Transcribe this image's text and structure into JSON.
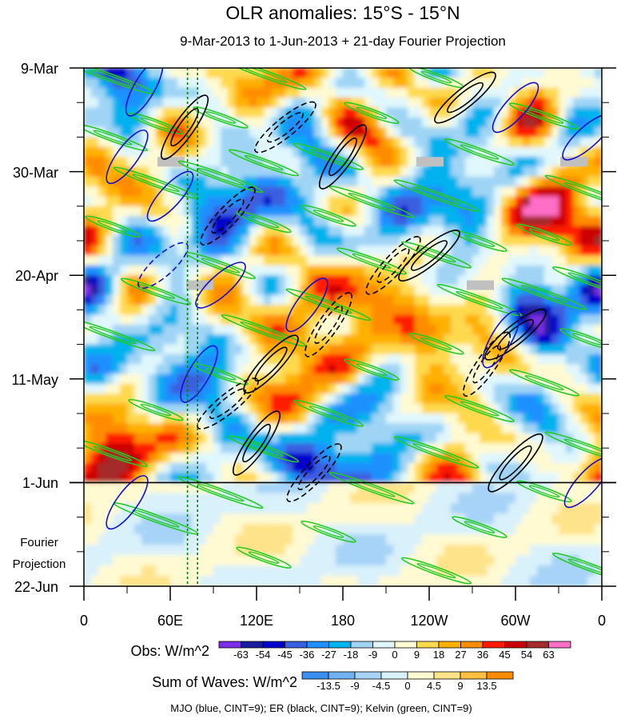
{
  "chart_data": {
    "type": "heatmap",
    "title": "OLR anomalies: 15°S - 15°N",
    "subtitle": "9-Mar-2013 to 1-Jun-2013 + 21-day Fourier Projection",
    "y_tick_labels": [
      "9-Mar",
      "30-Mar",
      "20-Apr",
      "11-May",
      "1-Jun",
      "22-Jun"
    ],
    "y_ticks_days": [
      0,
      21,
      42,
      63,
      84,
      105
    ],
    "y_range_days": [
      0,
      105
    ],
    "x_tick_labels": [
      "0",
      "60E",
      "120E",
      "180",
      "120W",
      "60W",
      "0"
    ],
    "x_ticks_lon": [
      0,
      60,
      120,
      180,
      240,
      300,
      360
    ],
    "x_range_lon": [
      0,
      360
    ],
    "projection_label": [
      "Fourier",
      "Projection"
    ],
    "observation_end_day": 84,
    "reference_lines_lon": [
      72,
      79
    ],
    "obs_colorbar": {
      "label": "Obs: W/m^2",
      "levels": [
        -63,
        -54,
        -45,
        -36,
        -27,
        -18,
        -9,
        0,
        9,
        18,
        27,
        36,
        45,
        54,
        63
      ],
      "level_labels": [
        "-63",
        "-54",
        "-45",
        "-36",
        "-27",
        "-18",
        "-9",
        "0",
        "9",
        "18",
        "27",
        "36",
        "45",
        "54",
        "63"
      ],
      "colors": [
        "#7b2ee6",
        "#1a1a9e",
        "#0000cd",
        "#3a5fe0",
        "#1e90ff",
        "#00b2ee",
        "#9fd4f5",
        "#e0f7fd",
        "#fffad2",
        "#ffd94d",
        "#ffb000",
        "#ff8c00",
        "#ff1a00",
        "#cc0000",
        "#a52a2a",
        "#ff6ec7"
      ]
    },
    "waves_colorbar": {
      "label": "Sum of Waves: W/m^2",
      "levels": [
        -13.5,
        -9,
        -4.5,
        0,
        4.5,
        9,
        13.5
      ],
      "level_labels": [
        "-13.5",
        "-9",
        "-4.5",
        "0",
        "4.5",
        "9",
        "13.5"
      ],
      "colors": [
        "#3a8ef0",
        "#6fb1f3",
        "#a6d3f7",
        "#d9f1fb",
        "#fffad2",
        "#ffe38a",
        "#ffbf40",
        "#ff8c00"
      ]
    },
    "contour_legend": "MJO (blue, CINT=9); ER (black, CINT=9); Kelvin (green, CINT=9)",
    "contour_colors": {
      "mjo": "#1010d0",
      "er": "#000000",
      "kelvin": "#22cc22"
    },
    "mjo_centers": [
      {
        "lon": 42,
        "day": 4,
        "sign": "neg"
      },
      {
        "lon": 30,
        "day": 18,
        "sign": "neg"
      },
      {
        "lon": 60,
        "day": 26,
        "sign": "neg"
      },
      {
        "lon": 95,
        "day": 44,
        "sign": "neg"
      },
      {
        "lon": 80,
        "day": 62,
        "sign": "neg"
      },
      {
        "lon": 155,
        "day": 48,
        "sign": "neg"
      },
      {
        "lon": 300,
        "day": 8,
        "sign": "neg"
      },
      {
        "lon": 350,
        "day": 14,
        "sign": "neg"
      },
      {
        "lon": 290,
        "day": 55,
        "sign": "neg"
      },
      {
        "lon": 30,
        "day": 88,
        "sign": "neg"
      },
      {
        "lon": 350,
        "day": 84,
        "sign": "neg"
      },
      {
        "lon": 55,
        "day": 40,
        "sign": "pos"
      }
    ],
    "er_centers": [
      {
        "lon": 70,
        "day": 12,
        "sign": "neg"
      },
      {
        "lon": 100,
        "day": 30,
        "sign": "pos"
      },
      {
        "lon": 140,
        "day": 12,
        "sign": "pos"
      },
      {
        "lon": 180,
        "day": 18,
        "sign": "neg"
      },
      {
        "lon": 215,
        "day": 40,
        "sign": "pos"
      },
      {
        "lon": 240,
        "day": 38,
        "sign": "neg"
      },
      {
        "lon": 170,
        "day": 52,
        "sign": "pos"
      },
      {
        "lon": 130,
        "day": 60,
        "sign": "neg"
      },
      {
        "lon": 100,
        "day": 68,
        "sign": "pos"
      },
      {
        "lon": 120,
        "day": 76,
        "sign": "neg"
      },
      {
        "lon": 160,
        "day": 82,
        "sign": "pos"
      },
      {
        "lon": 300,
        "day": 54,
        "sign": "neg"
      },
      {
        "lon": 280,
        "day": 60,
        "sign": "pos"
      },
      {
        "lon": 300,
        "day": 80,
        "sign": "neg"
      },
      {
        "lon": 265,
        "day": 6,
        "sign": "neg"
      }
    ],
    "kelvin_phase_lines_day_at_lon0": [
      -24,
      -12,
      0,
      6,
      12,
      18,
      30,
      40,
      52,
      64,
      76,
      86
    ],
    "kelvin_slope_days_per_360": 38,
    "missing_data_bars": [
      {
        "lon": 60,
        "day": 19
      },
      {
        "lon": 240,
        "day": 19
      },
      {
        "lon": 340,
        "day": 19
      },
      {
        "lon": 80,
        "day": 44
      },
      {
        "lon": 275,
        "day": 44
      }
    ]
  }
}
